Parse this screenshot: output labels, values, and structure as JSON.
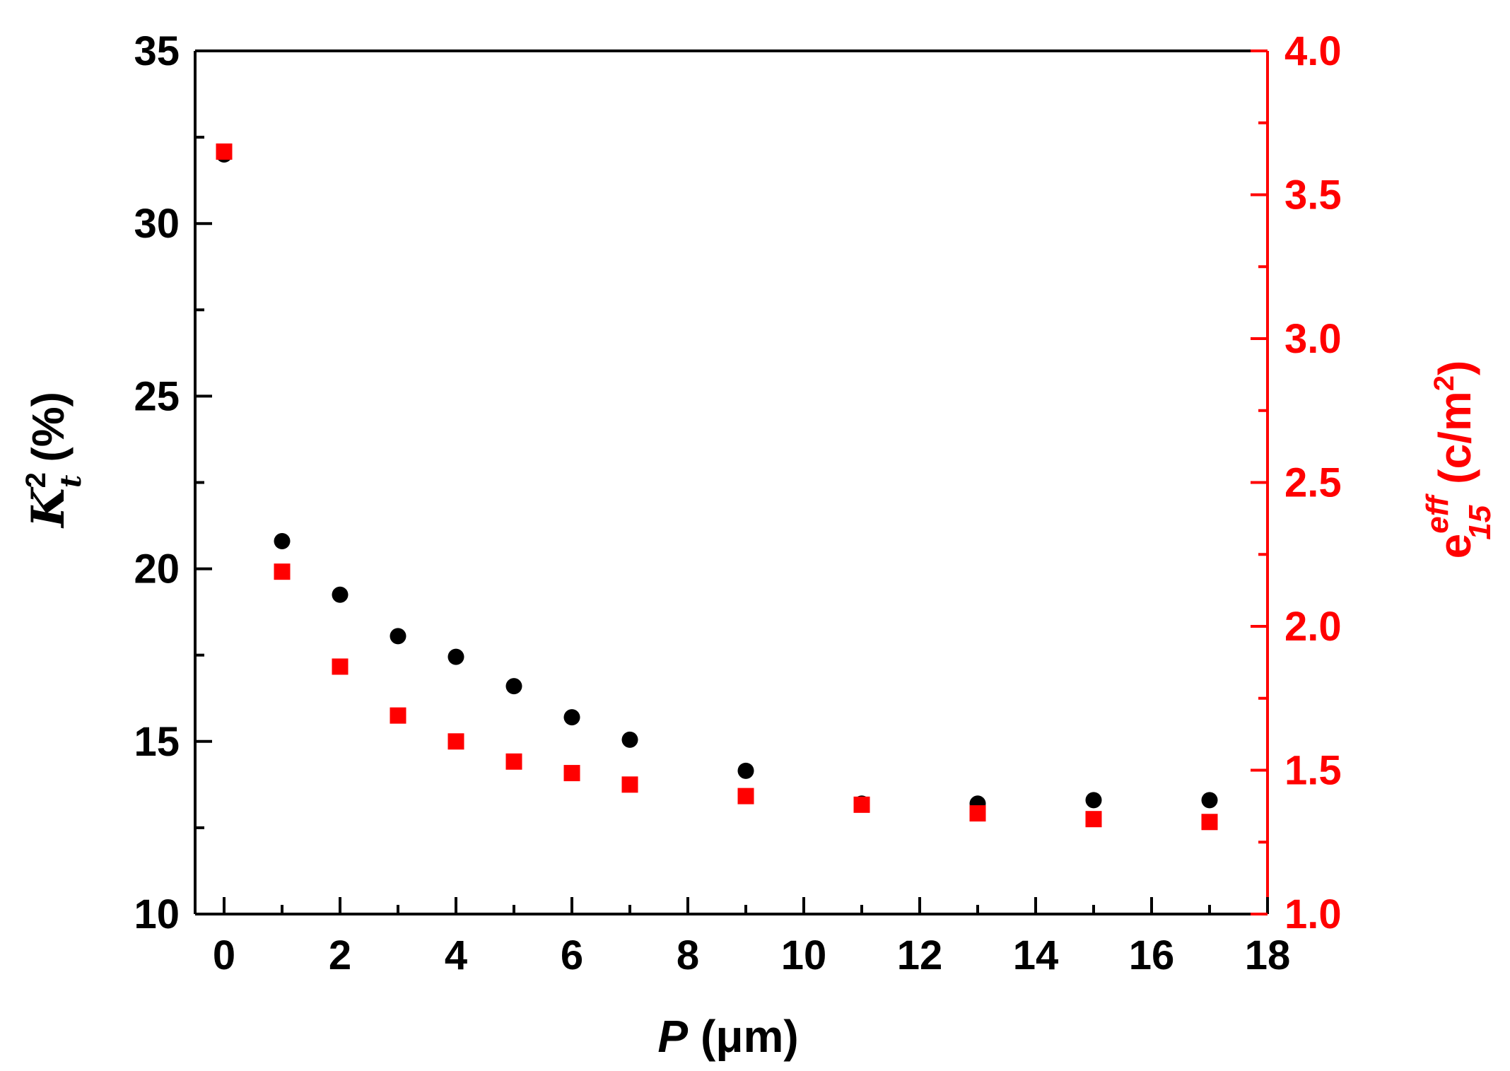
{
  "chart_data": {
    "type": "scatter",
    "title": "",
    "xlabel": {
      "symbol": "P",
      "unit": "(μm)"
    },
    "ylabel_left": {
      "symbol": "K",
      "superscript": "2",
      "subscript": "t",
      "unit": "(%)"
    },
    "ylabel_right": {
      "symbol": "e",
      "superscript": "eff",
      "subscript": "15",
      "unit": "(c/m",
      "unit_sup": "2",
      "unit_end": ")"
    },
    "xlim": [
      -0.5,
      18
    ],
    "ylim_left": [
      10,
      35
    ],
    "ylim_right": [
      1.0,
      4.0
    ],
    "x_ticks": [
      "0",
      "2",
      "4",
      "6",
      "8",
      "10",
      "12",
      "14",
      "16",
      "18"
    ],
    "y_left_ticks": [
      "10",
      "15",
      "20",
      "25",
      "30",
      "35"
    ],
    "y_right_ticks": [
      "1.0",
      "1.5",
      "2.0",
      "2.5",
      "3.0",
      "3.5",
      "4.0"
    ],
    "legend": "none",
    "grid": false,
    "colors": {
      "left_axis": "#000000",
      "right_axis": "#ff0000",
      "series_k": "#000000",
      "series_e": "#ff0000"
    },
    "series": [
      {
        "name": "Kt2",
        "axis": "left",
        "marker": "circle",
        "x": [
          0,
          1,
          2,
          3,
          4,
          5,
          6,
          7,
          9,
          11,
          13,
          15,
          17
        ],
        "values": [
          32.0,
          20.8,
          19.25,
          18.05,
          17.45,
          16.6,
          15.7,
          15.05,
          14.15,
          13.2,
          13.2,
          13.3,
          13.3
        ]
      },
      {
        "name": "e15eff",
        "axis": "right",
        "marker": "square",
        "x": [
          0,
          1,
          2,
          3,
          4,
          5,
          6,
          7,
          9,
          11,
          13,
          15,
          17
        ],
        "values": [
          3.65,
          2.19,
          1.86,
          1.69,
          1.6,
          1.53,
          1.49,
          1.45,
          1.41,
          1.38,
          1.35,
          1.33,
          1.32
        ]
      }
    ]
  }
}
